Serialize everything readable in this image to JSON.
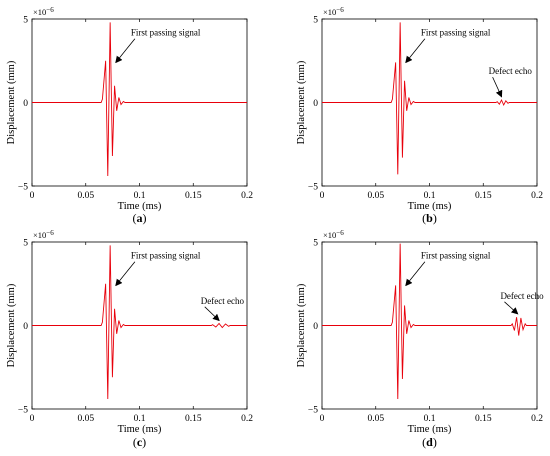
{
  "chart_data": [
    {
      "type": "line",
      "panel_label": "(a)",
      "xlabel": "Time (ms)",
      "ylabel": "Displacement (mm)",
      "xlim": [
        0,
        0.2
      ],
      "ylim": [
        -5,
        5
      ],
      "y_scale_label": "×10",
      "y_scale_exponent": "−6",
      "xticks": [
        "0",
        "0.05",
        "0.1",
        "0.15",
        "0.2"
      ],
      "yticks": [
        "−5",
        "0",
        "5"
      ],
      "series_color": "#e8000b",
      "signal": {
        "peaks": [
          {
            "t": 0.0655,
            "v": 0.2
          },
          {
            "t": 0.0685,
            "v": 2.5
          },
          {
            "t": 0.0705,
            "v": -4.4
          },
          {
            "t": 0.0727,
            "v": 4.8
          },
          {
            "t": 0.0748,
            "v": -3.2
          },
          {
            "t": 0.0768,
            "v": 1.0
          },
          {
            "t": 0.0788,
            "v": -0.5
          },
          {
            "t": 0.0808,
            "v": 0.3
          },
          {
            "t": 0.0828,
            "v": -0.12
          },
          {
            "t": 0.085,
            "v": 0.06
          }
        ],
        "echo_peaks": []
      },
      "annotations": [
        {
          "text": "First passing signal",
          "text_at": [
            0.092,
            4.0
          ],
          "arrow_to": [
            0.078,
            2.4
          ]
        }
      ]
    },
    {
      "type": "line",
      "panel_label": "(b)",
      "xlabel": "Time (ms)",
      "ylabel": "Displacement (mm)",
      "xlim": [
        0,
        0.2
      ],
      "ylim": [
        -5,
        5
      ],
      "y_scale_label": "×10",
      "y_scale_exponent": "−6",
      "xticks": [
        "0",
        "0.05",
        "0.1",
        "0.15",
        "0.2"
      ],
      "yticks": [
        "−5",
        "0",
        "5"
      ],
      "series_color": "#e8000b",
      "signal": {
        "peaks": [
          {
            "t": 0.0655,
            "v": 0.2
          },
          {
            "t": 0.0685,
            "v": 2.4
          },
          {
            "t": 0.0705,
            "v": -4.3
          },
          {
            "t": 0.0727,
            "v": 4.8
          },
          {
            "t": 0.0748,
            "v": -3.3
          },
          {
            "t": 0.0768,
            "v": 1.3
          },
          {
            "t": 0.0788,
            "v": -0.5
          },
          {
            "t": 0.0808,
            "v": 0.3
          },
          {
            "t": 0.0828,
            "v": -0.12
          },
          {
            "t": 0.085,
            "v": 0.06
          }
        ],
        "echo_peaks": [
          {
            "t": 0.163,
            "v": 0.05
          },
          {
            "t": 0.165,
            "v": -0.1
          },
          {
            "t": 0.167,
            "v": 0.15
          },
          {
            "t": 0.169,
            "v": -0.15
          },
          {
            "t": 0.171,
            "v": 0.1
          },
          {
            "t": 0.173,
            "v": -0.05
          }
        ]
      },
      "annotations": [
        {
          "text": "First passing signal",
          "text_at": [
            0.092,
            4.0
          ],
          "arrow_to": [
            0.078,
            2.4
          ]
        },
        {
          "text": "Defect echo",
          "text_at": [
            0.155,
            1.7
          ],
          "arrow_to": [
            0.167,
            0.35
          ]
        }
      ]
    },
    {
      "type": "line",
      "panel_label": "(c)",
      "xlabel": "Time (ms)",
      "ylabel": "Displacement (mm)",
      "xlim": [
        0,
        0.2
      ],
      "ylim": [
        -5,
        5
      ],
      "y_scale_label": "×10",
      "y_scale_exponent": "−6",
      "xticks": [
        "0",
        "0.05",
        "0.1",
        "0.15",
        "0.2"
      ],
      "yticks": [
        "−5",
        "0",
        "5"
      ],
      "series_color": "#e8000b",
      "signal": {
        "peaks": [
          {
            "t": 0.0655,
            "v": 0.2
          },
          {
            "t": 0.0685,
            "v": 2.5
          },
          {
            "t": 0.0705,
            "v": -4.4
          },
          {
            "t": 0.0727,
            "v": 4.8
          },
          {
            "t": 0.0748,
            "v": -3.1
          },
          {
            "t": 0.0768,
            "v": 1.0
          },
          {
            "t": 0.0788,
            "v": -0.5
          },
          {
            "t": 0.0808,
            "v": 0.3
          },
          {
            "t": 0.0828,
            "v": -0.12
          },
          {
            "t": 0.085,
            "v": 0.06
          }
        ],
        "echo_peaks": [
          {
            "t": 0.168,
            "v": 0.05
          },
          {
            "t": 0.171,
            "v": -0.09
          },
          {
            "t": 0.174,
            "v": 0.12
          },
          {
            "t": 0.177,
            "v": -0.12
          },
          {
            "t": 0.18,
            "v": 0.09
          },
          {
            "t": 0.183,
            "v": -0.05
          }
        ]
      },
      "annotations": [
        {
          "text": "First passing signal",
          "text_at": [
            0.092,
            4.0
          ],
          "arrow_to": [
            0.078,
            2.4
          ]
        },
        {
          "text": "Defect echo",
          "text_at": [
            0.157,
            1.3
          ],
          "arrow_to": [
            0.174,
            0.3
          ]
        }
      ]
    },
    {
      "type": "line",
      "panel_label": "(d)",
      "xlabel": "Time (ms)",
      "ylabel": "Displacement (mm)",
      "xlim": [
        0,
        0.2
      ],
      "ylim": [
        -5,
        5
      ],
      "y_scale_label": "×10",
      "y_scale_exponent": "−6",
      "xticks": [
        "0",
        "0.05",
        "0.1",
        "0.15",
        "0.2"
      ],
      "yticks": [
        "−5",
        "0",
        "5"
      ],
      "series_color": "#e8000b",
      "signal": {
        "peaks": [
          {
            "t": 0.0655,
            "v": 0.2
          },
          {
            "t": 0.0685,
            "v": 2.4
          },
          {
            "t": 0.0705,
            "v": -4.4
          },
          {
            "t": 0.0727,
            "v": 4.9
          },
          {
            "t": 0.0748,
            "v": -3.2
          },
          {
            "t": 0.0768,
            "v": 1.2
          },
          {
            "t": 0.0788,
            "v": -0.5
          },
          {
            "t": 0.0808,
            "v": 0.3
          },
          {
            "t": 0.0828,
            "v": -0.12
          },
          {
            "t": 0.085,
            "v": 0.06
          }
        ],
        "echo_peaks": [
          {
            "t": 0.177,
            "v": 0.1
          },
          {
            "t": 0.179,
            "v": -0.3
          },
          {
            "t": 0.181,
            "v": 0.5
          },
          {
            "t": 0.183,
            "v": -0.6
          },
          {
            "t": 0.185,
            "v": 0.45
          },
          {
            "t": 0.187,
            "v": -0.25
          },
          {
            "t": 0.189,
            "v": 0.1
          }
        ]
      },
      "annotations": [
        {
          "text": "First passing signal",
          "text_at": [
            0.092,
            4.0
          ],
          "arrow_to": [
            0.078,
            2.4
          ]
        },
        {
          "text": "Defect echo",
          "text_at": [
            0.166,
            1.6
          ],
          "arrow_to": [
            0.182,
            0.7
          ]
        }
      ]
    }
  ]
}
